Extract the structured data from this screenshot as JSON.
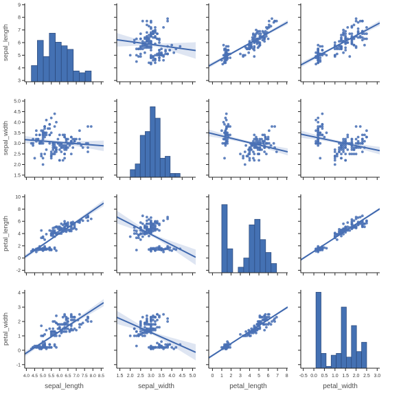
{
  "chart_data": {
    "type": "scatter",
    "subtype": "pairplot-scatter-matrix-with-regression-and-diagonal-histograms",
    "title": "",
    "variables": [
      "sepal_length",
      "sepal_width",
      "petal_length",
      "petal_width"
    ],
    "axis_labels": {
      "sepal_length": "sepal_length",
      "sepal_width": "sepal_width",
      "petal_length": "petal_length",
      "petal_width": "petal_width"
    },
    "axes": {
      "sepal_length": {
        "xlim": [
          3.9,
          8.65
        ],
        "ylim": [
          2.9,
          9.1
        ],
        "xticks": [
          "4.0",
          "4.5",
          "5.0",
          "5.5",
          "6.0",
          "6.5",
          "7.0",
          "7.5",
          "8.0",
          "8.5"
        ],
        "yticks": [
          "3",
          "4",
          "5",
          "6",
          "7",
          "8",
          "9"
        ]
      },
      "sepal_width": {
        "xlim": [
          1.35,
          5.15
        ],
        "ylim": [
          1.4,
          5.1
        ],
        "xticks": [
          "1.5",
          "2.0",
          "2.5",
          "3.0",
          "3.5",
          "4.0",
          "4.5",
          "5.0"
        ],
        "yticks": [
          "1.5",
          "2.0",
          "2.5",
          "3.0",
          "3.5",
          "4.0",
          "4.5",
          "5.0"
        ]
      },
      "petal_length": {
        "xlim": [
          -0.4,
          8.1
        ],
        "ylim": [
          -2.4,
          10.4
        ],
        "xticks": [
          "0",
          "1",
          "2",
          "3",
          "4",
          "5",
          "6",
          "7",
          "8"
        ],
        "yticks": [
          "-2",
          "0",
          "2",
          "4",
          "6",
          "8",
          "10"
        ]
      },
      "petal_width": {
        "xlim": [
          -0.62,
          3.12
        ],
        "ylim": [
          -1.25,
          4.2
        ],
        "xticks": [
          "-0.5",
          "0.0",
          "0.5",
          "1.0",
          "1.5",
          "2.0",
          "2.5",
          "3.0"
        ],
        "yticks": [
          "-1",
          "0",
          "1",
          "2",
          "3",
          "4"
        ]
      }
    },
    "histograms": {
      "bins": 10,
      "peak_fraction": {
        "sepal_length": 0.62,
        "sepal_width": 0.9,
        "petal_length": 0.87,
        "petal_width": 0.97
      }
    },
    "regression": {
      "fit": "linear-least-squares",
      "ci_band": true,
      "ci_t": 1.976
    },
    "legend": "none",
    "grid": "off",
    "colors": {
      "marker": "#4a71b5",
      "line": "#3f68ae",
      "band": "#4a71b5",
      "bar_fill": "#4471b3",
      "bar_edge": "#2c4a7c",
      "spine": "#262626",
      "tick_label": "#3a3a3a",
      "axis_label": "#4d4d4d",
      "background": "#ffffff"
    },
    "points": [
      [
        5.1,
        3.5,
        1.4,
        0.2
      ],
      [
        4.9,
        3.0,
        1.4,
        0.2
      ],
      [
        4.7,
        3.2,
        1.3,
        0.2
      ],
      [
        4.6,
        3.1,
        1.5,
        0.2
      ],
      [
        5.0,
        3.6,
        1.4,
        0.2
      ],
      [
        5.4,
        3.9,
        1.7,
        0.4
      ],
      [
        4.6,
        3.4,
        1.4,
        0.3
      ],
      [
        5.0,
        3.4,
        1.5,
        0.2
      ],
      [
        4.4,
        2.9,
        1.4,
        0.2
      ],
      [
        4.9,
        3.1,
        1.5,
        0.1
      ],
      [
        5.4,
        3.7,
        1.5,
        0.2
      ],
      [
        4.8,
        3.4,
        1.6,
        0.2
      ],
      [
        4.8,
        3.0,
        1.4,
        0.1
      ],
      [
        4.3,
        3.0,
        1.1,
        0.1
      ],
      [
        5.8,
        4.0,
        1.2,
        0.2
      ],
      [
        5.7,
        4.4,
        1.5,
        0.4
      ],
      [
        5.4,
        3.9,
        1.3,
        0.4
      ],
      [
        5.1,
        3.5,
        1.4,
        0.3
      ],
      [
        5.7,
        3.8,
        1.7,
        0.3
      ],
      [
        5.1,
        3.8,
        1.5,
        0.3
      ],
      [
        5.4,
        3.4,
        1.7,
        0.2
      ],
      [
        5.1,
        3.7,
        1.5,
        0.4
      ],
      [
        4.6,
        3.6,
        1.0,
        0.2
      ],
      [
        5.1,
        3.3,
        1.7,
        0.5
      ],
      [
        4.8,
        3.4,
        1.9,
        0.2
      ],
      [
        5.0,
        3.0,
        1.6,
        0.2
      ],
      [
        5.0,
        3.4,
        1.6,
        0.4
      ],
      [
        5.2,
        3.5,
        1.5,
        0.2
      ],
      [
        5.2,
        3.4,
        1.4,
        0.2
      ],
      [
        4.7,
        3.2,
        1.6,
        0.2
      ],
      [
        4.8,
        3.1,
        1.6,
        0.2
      ],
      [
        5.4,
        3.4,
        1.5,
        0.4
      ],
      [
        5.2,
        4.1,
        1.5,
        0.1
      ],
      [
        5.5,
        4.2,
        1.4,
        0.2
      ],
      [
        4.9,
        3.1,
        1.5,
        0.2
      ],
      [
        5.0,
        3.2,
        1.2,
        0.2
      ],
      [
        5.5,
        3.5,
        1.3,
        0.2
      ],
      [
        4.9,
        3.6,
        1.4,
        0.1
      ],
      [
        4.4,
        3.0,
        1.3,
        0.2
      ],
      [
        5.1,
        3.4,
        1.5,
        0.2
      ],
      [
        5.0,
        3.5,
        1.3,
        0.3
      ],
      [
        4.5,
        2.3,
        1.3,
        0.3
      ],
      [
        4.4,
        3.2,
        1.3,
        0.2
      ],
      [
        5.0,
        3.5,
        1.6,
        0.6
      ],
      [
        5.1,
        3.8,
        1.9,
        0.4
      ],
      [
        4.8,
        3.0,
        1.4,
        0.3
      ],
      [
        5.1,
        3.8,
        1.6,
        0.2
      ],
      [
        4.6,
        3.2,
        1.4,
        0.2
      ],
      [
        5.3,
        3.7,
        1.5,
        0.2
      ],
      [
        5.0,
        3.3,
        1.4,
        0.2
      ],
      [
        7.0,
        3.2,
        4.7,
        1.4
      ],
      [
        6.4,
        3.2,
        4.5,
        1.5
      ],
      [
        6.9,
        3.1,
        4.9,
        1.5
      ],
      [
        5.5,
        2.3,
        4.0,
        1.3
      ],
      [
        6.5,
        2.8,
        4.6,
        1.5
      ],
      [
        5.7,
        2.8,
        4.5,
        1.3
      ],
      [
        6.3,
        3.3,
        4.7,
        1.6
      ],
      [
        4.9,
        2.4,
        3.3,
        1.0
      ],
      [
        6.6,
        2.9,
        4.6,
        1.3
      ],
      [
        5.2,
        2.7,
        3.9,
        1.4
      ],
      [
        5.0,
        2.0,
        3.5,
        1.0
      ],
      [
        5.9,
        3.0,
        4.2,
        1.5
      ],
      [
        6.0,
        2.2,
        4.0,
        1.0
      ],
      [
        6.1,
        2.9,
        4.7,
        1.4
      ],
      [
        5.6,
        2.9,
        3.6,
        1.3
      ],
      [
        6.7,
        3.1,
        4.4,
        1.4
      ],
      [
        5.6,
        3.0,
        4.5,
        1.5
      ],
      [
        5.8,
        2.7,
        4.1,
        1.0
      ],
      [
        6.2,
        2.2,
        4.5,
        1.5
      ],
      [
        5.6,
        2.5,
        3.9,
        1.1
      ],
      [
        5.9,
        3.2,
        4.8,
        1.8
      ],
      [
        6.1,
        2.8,
        4.0,
        1.3
      ],
      [
        6.3,
        2.5,
        4.9,
        1.5
      ],
      [
        6.1,
        2.8,
        4.7,
        1.2
      ],
      [
        6.4,
        2.9,
        4.3,
        1.3
      ],
      [
        6.6,
        3.0,
        4.4,
        1.4
      ],
      [
        6.8,
        2.8,
        4.8,
        1.4
      ],
      [
        6.7,
        3.0,
        5.0,
        1.7
      ],
      [
        6.0,
        2.9,
        4.5,
        1.5
      ],
      [
        5.7,
        2.6,
        3.5,
        1.0
      ],
      [
        5.5,
        2.4,
        3.8,
        1.1
      ],
      [
        5.5,
        2.4,
        3.7,
        1.0
      ],
      [
        5.8,
        2.7,
        3.9,
        1.2
      ],
      [
        6.0,
        2.7,
        5.1,
        1.6
      ],
      [
        5.4,
        3.0,
        4.5,
        1.5
      ],
      [
        6.0,
        3.4,
        4.5,
        1.6
      ],
      [
        6.7,
        3.1,
        4.7,
        1.5
      ],
      [
        6.3,
        2.3,
        4.4,
        1.3
      ],
      [
        5.6,
        3.0,
        4.1,
        1.3
      ],
      [
        5.5,
        2.5,
        4.0,
        1.3
      ],
      [
        5.5,
        2.6,
        4.4,
        1.2
      ],
      [
        6.1,
        3.0,
        4.6,
        1.4
      ],
      [
        5.8,
        2.6,
        4.0,
        1.2
      ],
      [
        5.0,
        2.3,
        3.3,
        1.0
      ],
      [
        5.6,
        2.7,
        4.2,
        1.3
      ],
      [
        5.7,
        3.0,
        4.2,
        1.2
      ],
      [
        5.7,
        2.9,
        4.2,
        1.3
      ],
      [
        6.2,
        2.9,
        4.3,
        1.3
      ],
      [
        5.1,
        2.5,
        3.0,
        1.1
      ],
      [
        5.7,
        2.8,
        4.1,
        1.3
      ],
      [
        6.3,
        3.3,
        6.0,
        2.5
      ],
      [
        5.8,
        2.7,
        5.1,
        1.9
      ],
      [
        7.1,
        3.0,
        5.9,
        2.1
      ],
      [
        6.3,
        2.9,
        5.6,
        1.8
      ],
      [
        6.5,
        3.0,
        5.8,
        2.2
      ],
      [
        7.6,
        3.0,
        6.6,
        2.1
      ],
      [
        4.9,
        2.5,
        4.5,
        1.7
      ],
      [
        7.3,
        2.9,
        6.3,
        1.8
      ],
      [
        6.7,
        2.5,
        5.8,
        1.8
      ],
      [
        7.2,
        3.6,
        6.1,
        2.5
      ],
      [
        6.5,
        3.2,
        5.1,
        2.0
      ],
      [
        6.4,
        2.7,
        5.3,
        1.9
      ],
      [
        6.8,
        3.0,
        5.5,
        2.1
      ],
      [
        5.7,
        2.5,
        5.0,
        2.0
      ],
      [
        5.8,
        2.8,
        5.1,
        2.4
      ],
      [
        6.4,
        3.2,
        5.3,
        2.3
      ],
      [
        6.5,
        3.0,
        5.5,
        1.8
      ],
      [
        7.7,
        3.8,
        6.7,
        2.2
      ],
      [
        7.7,
        2.6,
        6.9,
        2.3
      ],
      [
        6.0,
        2.2,
        5.0,
        1.5
      ],
      [
        6.9,
        3.2,
        5.7,
        2.3
      ],
      [
        5.6,
        2.8,
        4.9,
        2.0
      ],
      [
        7.7,
        2.8,
        6.7,
        2.0
      ],
      [
        6.3,
        2.7,
        4.9,
        1.8
      ],
      [
        6.7,
        3.3,
        5.7,
        2.1
      ],
      [
        7.2,
        3.2,
        6.0,
        1.8
      ],
      [
        6.2,
        2.8,
        4.8,
        1.8
      ],
      [
        6.1,
        3.0,
        4.9,
        1.8
      ],
      [
        6.4,
        2.8,
        5.6,
        2.1
      ],
      [
        7.2,
        3.0,
        5.8,
        1.6
      ],
      [
        7.4,
        2.8,
        6.1,
        1.9
      ],
      [
        7.9,
        3.8,
        6.4,
        2.0
      ],
      [
        6.4,
        2.8,
        5.6,
        2.2
      ],
      [
        6.3,
        2.8,
        5.1,
        1.5
      ],
      [
        6.1,
        2.6,
        5.6,
        1.4
      ],
      [
        7.7,
        3.0,
        6.1,
        2.3
      ],
      [
        6.3,
        3.4,
        5.6,
        2.4
      ],
      [
        6.4,
        3.1,
        5.5,
        1.8
      ],
      [
        6.0,
        3.0,
        4.8,
        1.8
      ],
      [
        6.9,
        3.1,
        5.4,
        2.1
      ],
      [
        6.7,
        3.1,
        5.6,
        2.4
      ],
      [
        6.9,
        3.1,
        5.1,
        2.3
      ],
      [
        5.8,
        2.7,
        5.1,
        1.9
      ],
      [
        6.8,
        3.2,
        5.9,
        2.3
      ],
      [
        6.7,
        3.3,
        5.7,
        2.5
      ],
      [
        6.7,
        3.0,
        5.2,
        2.3
      ],
      [
        6.3,
        2.5,
        5.0,
        1.9
      ],
      [
        6.5,
        3.0,
        5.2,
        2.0
      ],
      [
        6.2,
        3.4,
        5.4,
        2.3
      ],
      [
        5.9,
        3.0,
        5.1,
        1.8
      ]
    ]
  }
}
